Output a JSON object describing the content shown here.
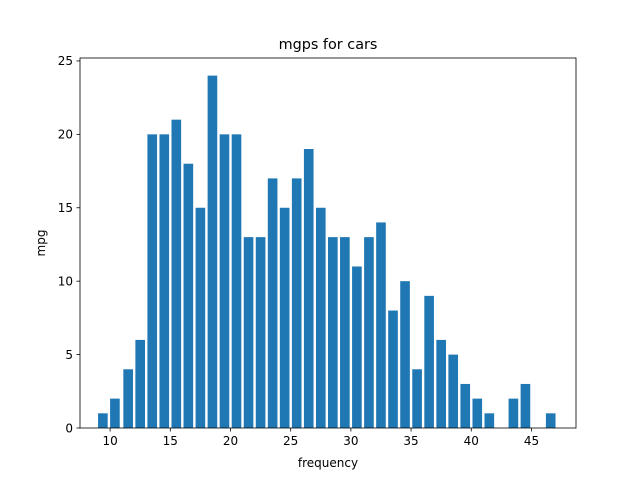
{
  "chart_data": {
    "type": "bar",
    "title": "mgps for cars",
    "xlabel": "frequency",
    "ylabel": "mpg",
    "xlim": [
      7.5,
      48.7
    ],
    "ylim": [
      0,
      25.2
    ],
    "xticks": [
      10,
      15,
      20,
      25,
      30,
      35,
      40,
      45
    ],
    "yticks": [
      0,
      5,
      10,
      15,
      20,
      25
    ],
    "grid": false,
    "bar_color": "#1f77b4",
    "x": [
      9.4,
      10.4,
      11.5,
      12.5,
      13.5,
      14.5,
      15.5,
      16.5,
      17.5,
      18.5,
      19.5,
      20.5,
      21.5,
      22.5,
      23.5,
      24.5,
      25.5,
      26.5,
      27.5,
      28.5,
      29.5,
      30.5,
      31.5,
      32.5,
      33.5,
      34.5,
      35.5,
      36.5,
      37.5,
      38.5,
      39.5,
      40.5,
      41.5,
      43.5,
      44.5,
      46.6
    ],
    "values": [
      1,
      2,
      4,
      6,
      20,
      20,
      21,
      18,
      15,
      24,
      20,
      20,
      13,
      13,
      17,
      15,
      17,
      19,
      15,
      13,
      13,
      11,
      13,
      14,
      8,
      10,
      4,
      9,
      6,
      5,
      3,
      2,
      1,
      2,
      3,
      1
    ]
  }
}
